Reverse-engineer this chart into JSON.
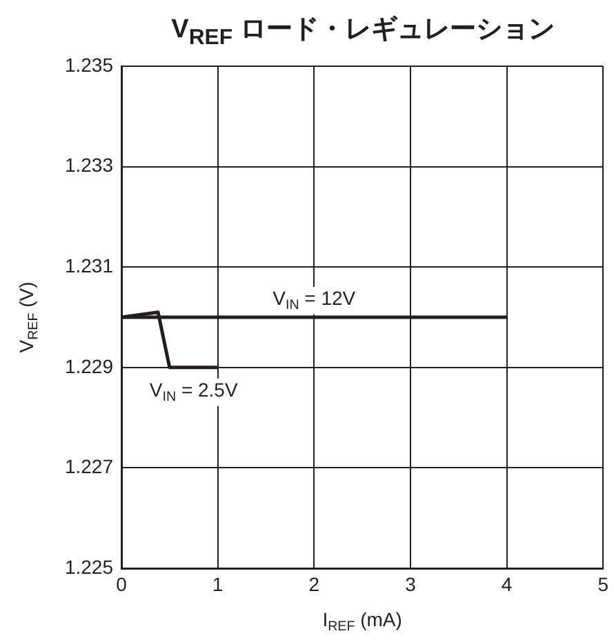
{
  "chart_data": {
    "type": "line",
    "title": "V$_{REF}$ ロード・レギュレーション",
    "xlabel": "I$_{REF}$ (mA)",
    "ylabel": "V$_{REF}$ (V)",
    "xlim": [
      0,
      5
    ],
    "xticks": [
      0,
      1,
      2,
      3,
      4,
      5
    ],
    "ylim": [
      1.225,
      1.235
    ],
    "yticks": [
      1.225,
      1.227,
      1.229,
      1.231,
      1.233,
      1.235
    ],
    "grid": true,
    "legend": false,
    "marker": "none",
    "line_style": "solid",
    "series": [
      {
        "name": "V$_{IN}$ = 12V",
        "color": "#231f20",
        "x": [
          0,
          4
        ],
        "values": [
          1.23,
          1.23
        ]
      },
      {
        "name": "V$_{IN}$ = 2.5V",
        "color": "#231f20",
        "x": [
          0,
          0.38,
          0.5,
          1
        ],
        "values": [
          1.23,
          1.2301,
          1.229,
          1.229
        ]
      }
    ]
  }
}
